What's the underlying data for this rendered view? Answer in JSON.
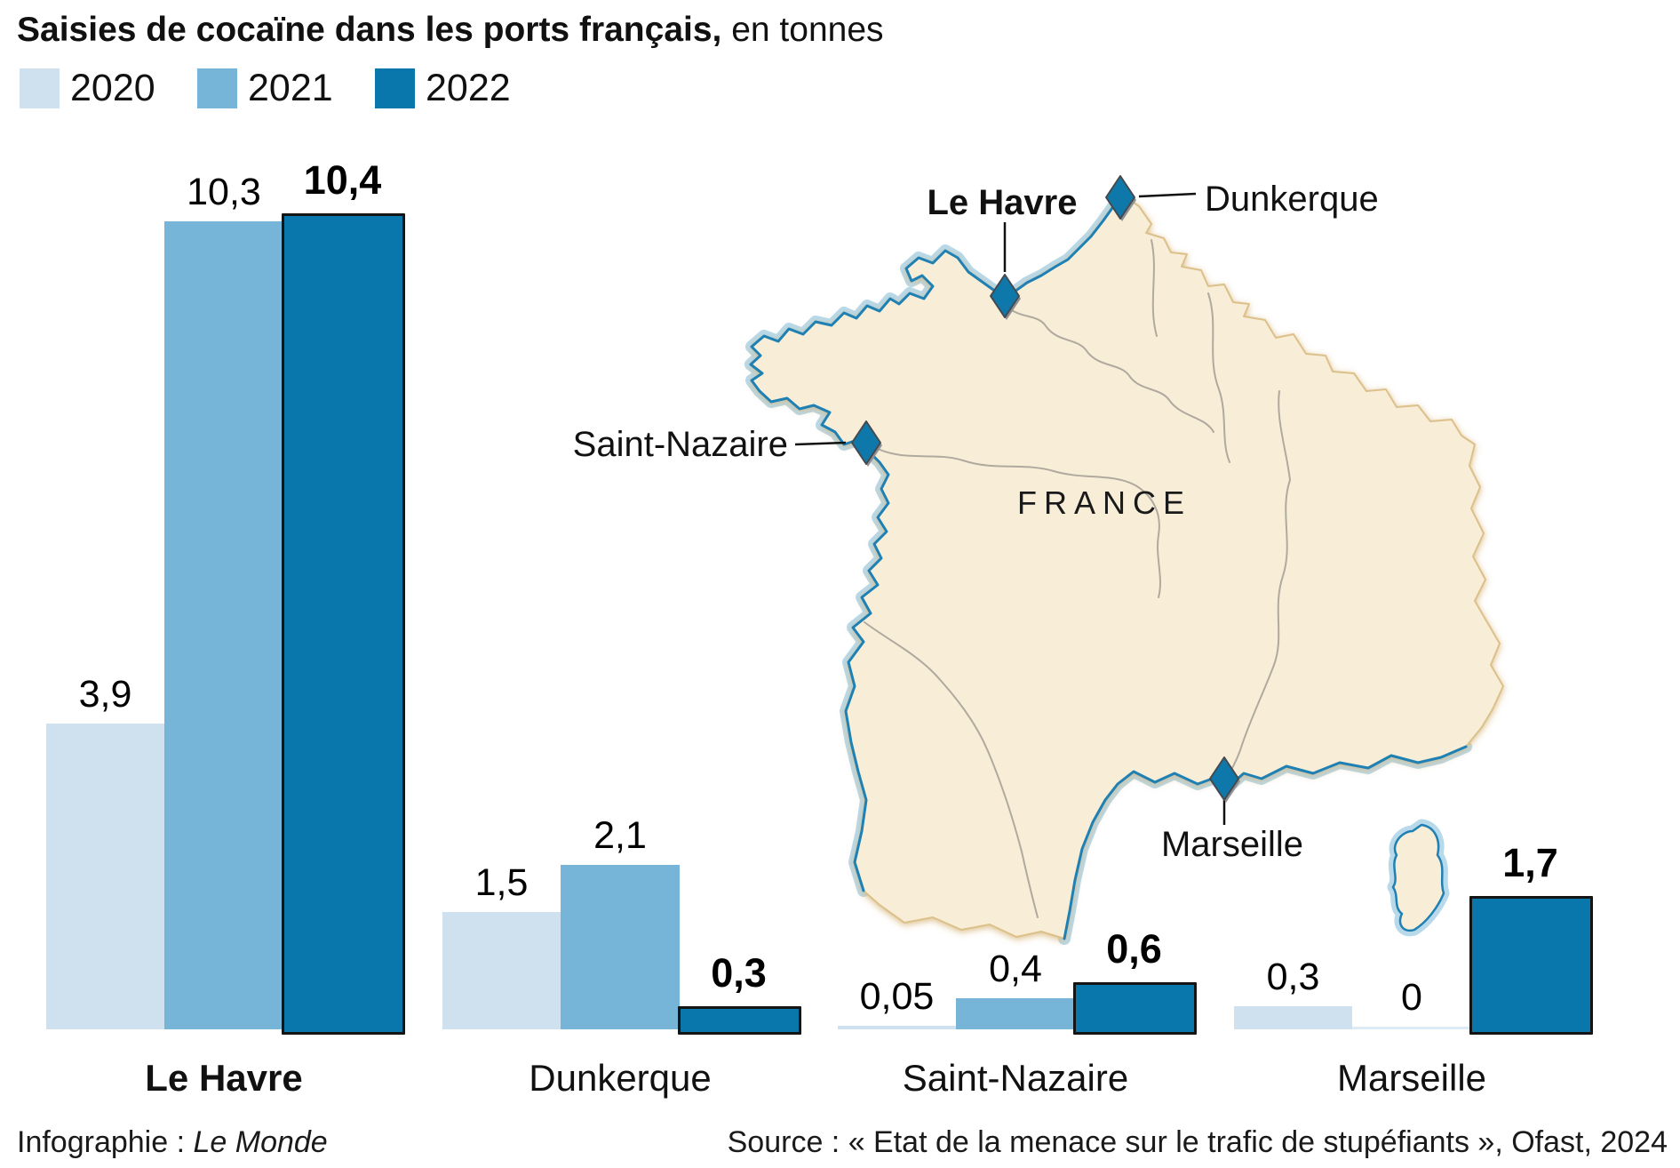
{
  "title": {
    "bold": "Saisies de cocaïne dans les ports français,",
    "regular": " en tonnes"
  },
  "legend": [
    {
      "label": "2020",
      "color": "#cfe0ee"
    },
    {
      "label": "2021",
      "color": "#76b5d8"
    },
    {
      "label": "2022",
      "color": "#0a77ac"
    }
  ],
  "chart_data": {
    "type": "bar",
    "title": "Saisies de cocaïne dans les ports français",
    "unit": "tonnes",
    "categories": [
      "Le Havre",
      "Dunkerque",
      "Saint-Nazaire",
      "Marseille"
    ],
    "series": [
      {
        "name": "2020",
        "color": "#cfe0ee",
        "values": [
          3.9,
          1.5,
          0.05,
          0.3
        ],
        "labels": [
          "3,9",
          "1,5",
          "0,05",
          "0,3"
        ],
        "outlined": false
      },
      {
        "name": "2021",
        "color": "#76b5d8",
        "values": [
          10.3,
          2.1,
          0.4,
          0
        ],
        "labels": [
          "10,3",
          "2,1",
          "0,4",
          "0"
        ],
        "outlined": false
      },
      {
        "name": "2022",
        "color": "#0a77ac",
        "values": [
          10.4,
          0.3,
          0.6,
          1.7
        ],
        "labels": [
          "10,4",
          "0,3",
          "0,6",
          "1,7"
        ],
        "outlined": true
      }
    ],
    "axis_labels": [
      {
        "label": "Le Havre",
        "bold": true
      },
      {
        "label": "Dunkerque",
        "bold": false
      },
      {
        "label": "Saint-Nazaire",
        "bold": false
      },
      {
        "label": "Marseille",
        "bold": false
      }
    ],
    "ylim": [
      0,
      10.4
    ],
    "grid": false,
    "legend_position": "top-left"
  },
  "map": {
    "country_label": "FRANCE",
    "ports": [
      {
        "name": "Le Havre",
        "bold": true
      },
      {
        "name": "Dunkerque",
        "bold": false
      },
      {
        "name": "Saint-Nazaire",
        "bold": false
      },
      {
        "name": "Marseille",
        "bold": false
      }
    ],
    "colors": {
      "land": "#f8eed8",
      "coast_halo": "#b8d9ea",
      "coast_line": "#1f80b3",
      "river": "#a39e94",
      "marker": "#0f78ab"
    }
  },
  "footer": {
    "credit_prefix": "Infographie : ",
    "credit_name": "Le Monde",
    "source": "Source : « Etat de la menace sur le trafic de stupéfiants », Ofast, 2024"
  }
}
